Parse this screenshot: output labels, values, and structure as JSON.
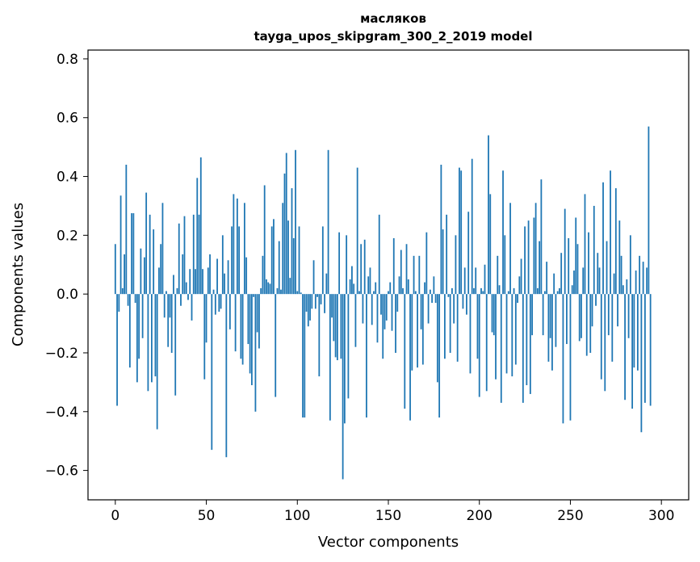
{
  "chart_data": {
    "type": "bar",
    "title": "масляков",
    "subtitle": "tayga_upos_skipgram_300_2_2019 model",
    "xlabel": "Vector components",
    "ylabel": "Components values",
    "xlim": [
      -15,
      315
    ],
    "ylim": [
      -0.7,
      0.83
    ],
    "xticks": [
      0,
      50,
      100,
      150,
      200,
      250,
      300
    ],
    "xtick_labels": [
      "0",
      "50",
      "100",
      "150",
      "200",
      "250",
      "300"
    ],
    "yticks": [
      -0.6,
      -0.4,
      -0.2,
      0.0,
      0.2,
      0.4,
      0.6,
      0.8
    ],
    "ytick_labels": [
      "−0.6",
      "−0.4",
      "−0.2",
      "0.0",
      "0.2",
      "0.4",
      "0.6",
      "0.8"
    ],
    "grid": false,
    "bar_color": "#1f77b4",
    "values": [
      0.17,
      -0.38,
      -0.06,
      0.335,
      0.02,
      0.135,
      0.44,
      -0.04,
      -0.25,
      0.275,
      0.275,
      -0.03,
      -0.3,
      -0.22,
      0.155,
      -0.15,
      0.125,
      0.345,
      -0.33,
      0.27,
      -0.3,
      0.22,
      -0.28,
      -0.46,
      0.09,
      0.17,
      0.31,
      -0.08,
      0.01,
      -0.18,
      -0.08,
      -0.2,
      0.065,
      -0.345,
      0.02,
      0.24,
      -0.04,
      0.135,
      0.265,
      0.04,
      -0.02,
      0.085,
      -0.09,
      0.27,
      0.085,
      0.395,
      0.27,
      0.465,
      0.085,
      -0.29,
      -0.165,
      0.09,
      0.135,
      -0.53,
      0.015,
      -0.07,
      0.12,
      -0.06,
      -0.05,
      0.2,
      0.07,
      -0.555,
      0.115,
      -0.12,
      0.23,
      0.34,
      -0.195,
      0.325,
      0.23,
      -0.22,
      -0.24,
      0.31,
      0.125,
      -0.17,
      -0.27,
      -0.31,
      -0.01,
      -0.4,
      -0.13,
      -0.185,
      0.02,
      0.13,
      0.37,
      0.05,
      0.04,
      0.035,
      0.23,
      0.255,
      -0.35,
      0.02,
      0.18,
      0.015,
      0.31,
      0.41,
      0.48,
      0.25,
      0.055,
      0.36,
      0.19,
      0.49,
      0.01,
      0.23,
      0.005,
      -0.42,
      -0.42,
      -0.06,
      -0.11,
      -0.09,
      -0.05,
      0.115,
      -0.05,
      -0.01,
      -0.28,
      -0.035,
      0.23,
      -0.065,
      0.07,
      0.49,
      -0.43,
      -0.08,
      -0.16,
      -0.215,
      -0.225,
      0.21,
      -0.22,
      -0.63,
      -0.44,
      0.2,
      -0.355,
      0.05,
      0.095,
      0.035,
      -0.18,
      0.43,
      0.01,
      0.17,
      -0.1,
      0.185,
      -0.42,
      0.06,
      0.09,
      -0.105,
      0.01,
      0.04,
      -0.165,
      0.27,
      -0.07,
      -0.22,
      -0.12,
      -0.09,
      0.01,
      0.04,
      -0.125,
      0.19,
      -0.2,
      -0.06,
      0.06,
      0.15,
      0.02,
      -0.39,
      0.17,
      0.05,
      -0.43,
      -0.26,
      0.13,
      0.01,
      -0.25,
      0.13,
      -0.12,
      -0.24,
      0.04,
      0.21,
      -0.1,
      0.015,
      -0.03,
      0.06,
      -0.03,
      -0.3,
      -0.42,
      0.44,
      0.22,
      -0.22,
      0.27,
      -0.01,
      -0.2,
      0.02,
      -0.1,
      0.2,
      -0.23,
      0.43,
      0.42,
      -0.05,
      0.09,
      -0.07,
      0.28,
      -0.27,
      0.46,
      0.02,
      0.09,
      -0.22,
      -0.35,
      0.02,
      0.01,
      0.1,
      -0.33,
      0.54,
      0.34,
      -0.13,
      -0.14,
      -0.29,
      0.13,
      0.03,
      -0.37,
      0.42,
      0.2,
      -0.27,
      0.01,
      0.31,
      -0.28,
      0.02,
      -0.24,
      -0.03,
      0.06,
      0.12,
      -0.37,
      0.23,
      -0.31,
      0.25,
      -0.34,
      -0.14,
      0.26,
      0.31,
      0.02,
      0.18,
      0.39,
      -0.14,
      0.01,
      0.11,
      -0.23,
      -0.15,
      -0.26,
      0.07,
      -0.18,
      0.01,
      0.02,
      0.14,
      -0.44,
      0.29,
      -0.17,
      0.19,
      -0.43,
      0.03,
      0.08,
      0.26,
      0.17,
      -0.16,
      -0.15,
      0.09,
      0.34,
      -0.21,
      0.21,
      -0.2,
      -0.11,
      0.3,
      -0.04,
      0.14,
      0.09,
      -0.29,
      0.38,
      -0.33,
      0.18,
      -0.14,
      0.42,
      -0.23,
      0.07,
      0.36,
      -0.11,
      0.25,
      0.13,
      0.03,
      -0.36,
      0.05,
      -0.15,
      0.2,
      -0.39,
      -0.25,
      0.08,
      -0.26,
      0.13,
      -0.47,
      0.11,
      -0.37,
      0.09,
      0.57,
      -0.38
    ]
  }
}
